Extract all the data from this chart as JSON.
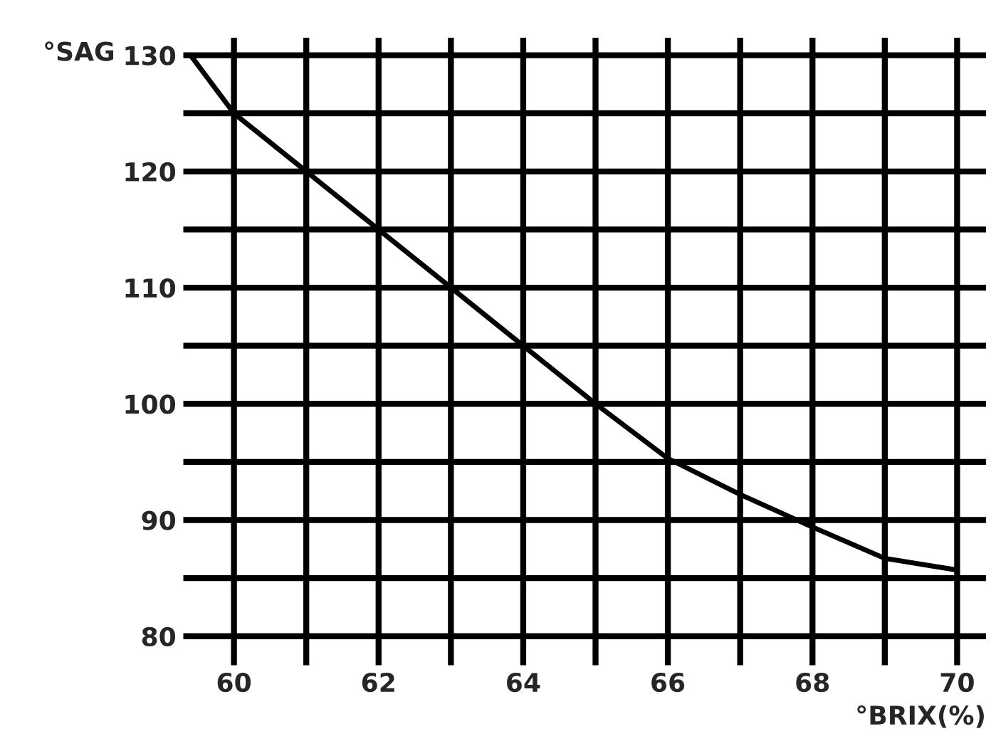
{
  "chart_data": {
    "type": "line",
    "ylabel": "°SAG",
    "xlabel": "°BRIX(%)",
    "x": [
      59.4,
      60,
      61,
      62,
      63,
      64,
      65,
      66,
      67,
      68,
      69,
      70
    ],
    "series": [
      {
        "color": "#000000",
        "values": [
          130,
          125,
          120,
          115,
          110,
          105,
          100,
          95.3,
          92.2,
          89.4,
          86.7,
          85.7
        ]
      }
    ],
    "xlim": [
      59.3,
      70.4
    ],
    "ylim": [
      77.5,
      131.5
    ],
    "xticks": [
      60,
      62,
      64,
      66,
      68,
      70
    ],
    "yticks": [
      80,
      90,
      100,
      110,
      120,
      130
    ],
    "grid": true,
    "marker": "none",
    "line_style": "solid"
  }
}
